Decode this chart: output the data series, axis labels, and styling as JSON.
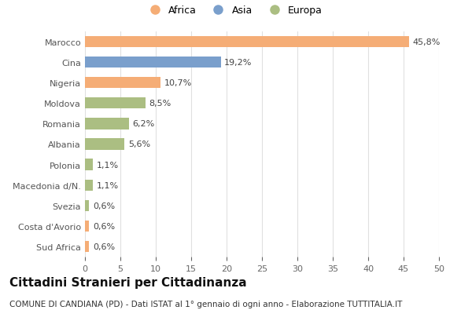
{
  "countries": [
    "Marocco",
    "Cina",
    "Nigeria",
    "Moldova",
    "Romania",
    "Albania",
    "Polonia",
    "Macedonia d/N.",
    "Svezia",
    "Costa d'Avorio",
    "Sud Africa"
  ],
  "values": [
    45.8,
    19.2,
    10.7,
    8.5,
    6.2,
    5.6,
    1.1,
    1.1,
    0.6,
    0.6,
    0.6
  ],
  "labels": [
    "45,8%",
    "19,2%",
    "10,7%",
    "8,5%",
    "6,2%",
    "5,6%",
    "1,1%",
    "1,1%",
    "0,6%",
    "0,6%",
    "0,6%"
  ],
  "continents": [
    "Africa",
    "Asia",
    "Africa",
    "Europa",
    "Europa",
    "Europa",
    "Europa",
    "Europa",
    "Europa",
    "Africa",
    "Africa"
  ],
  "colors": {
    "Africa": "#F5AD76",
    "Asia": "#7A9FCC",
    "Europa": "#ABBE82"
  },
  "legend_order": [
    "Africa",
    "Asia",
    "Europa"
  ],
  "xlim": [
    0,
    50
  ],
  "xticks": [
    0,
    5,
    10,
    15,
    20,
    25,
    30,
    35,
    40,
    45,
    50
  ],
  "title": "Cittadini Stranieri per Cittadinanza",
  "subtitle": "COMUNE DI CANDIANA (PD) - Dati ISTAT al 1° gennaio di ogni anno - Elaborazione TUTTITALIA.IT",
  "bg_color": "#ffffff",
  "grid_color": "#e0e0e0",
  "bar_height": 0.55,
  "title_fontsize": 11,
  "subtitle_fontsize": 7.5,
  "label_fontsize": 8,
  "tick_fontsize": 8,
  "legend_fontsize": 9
}
